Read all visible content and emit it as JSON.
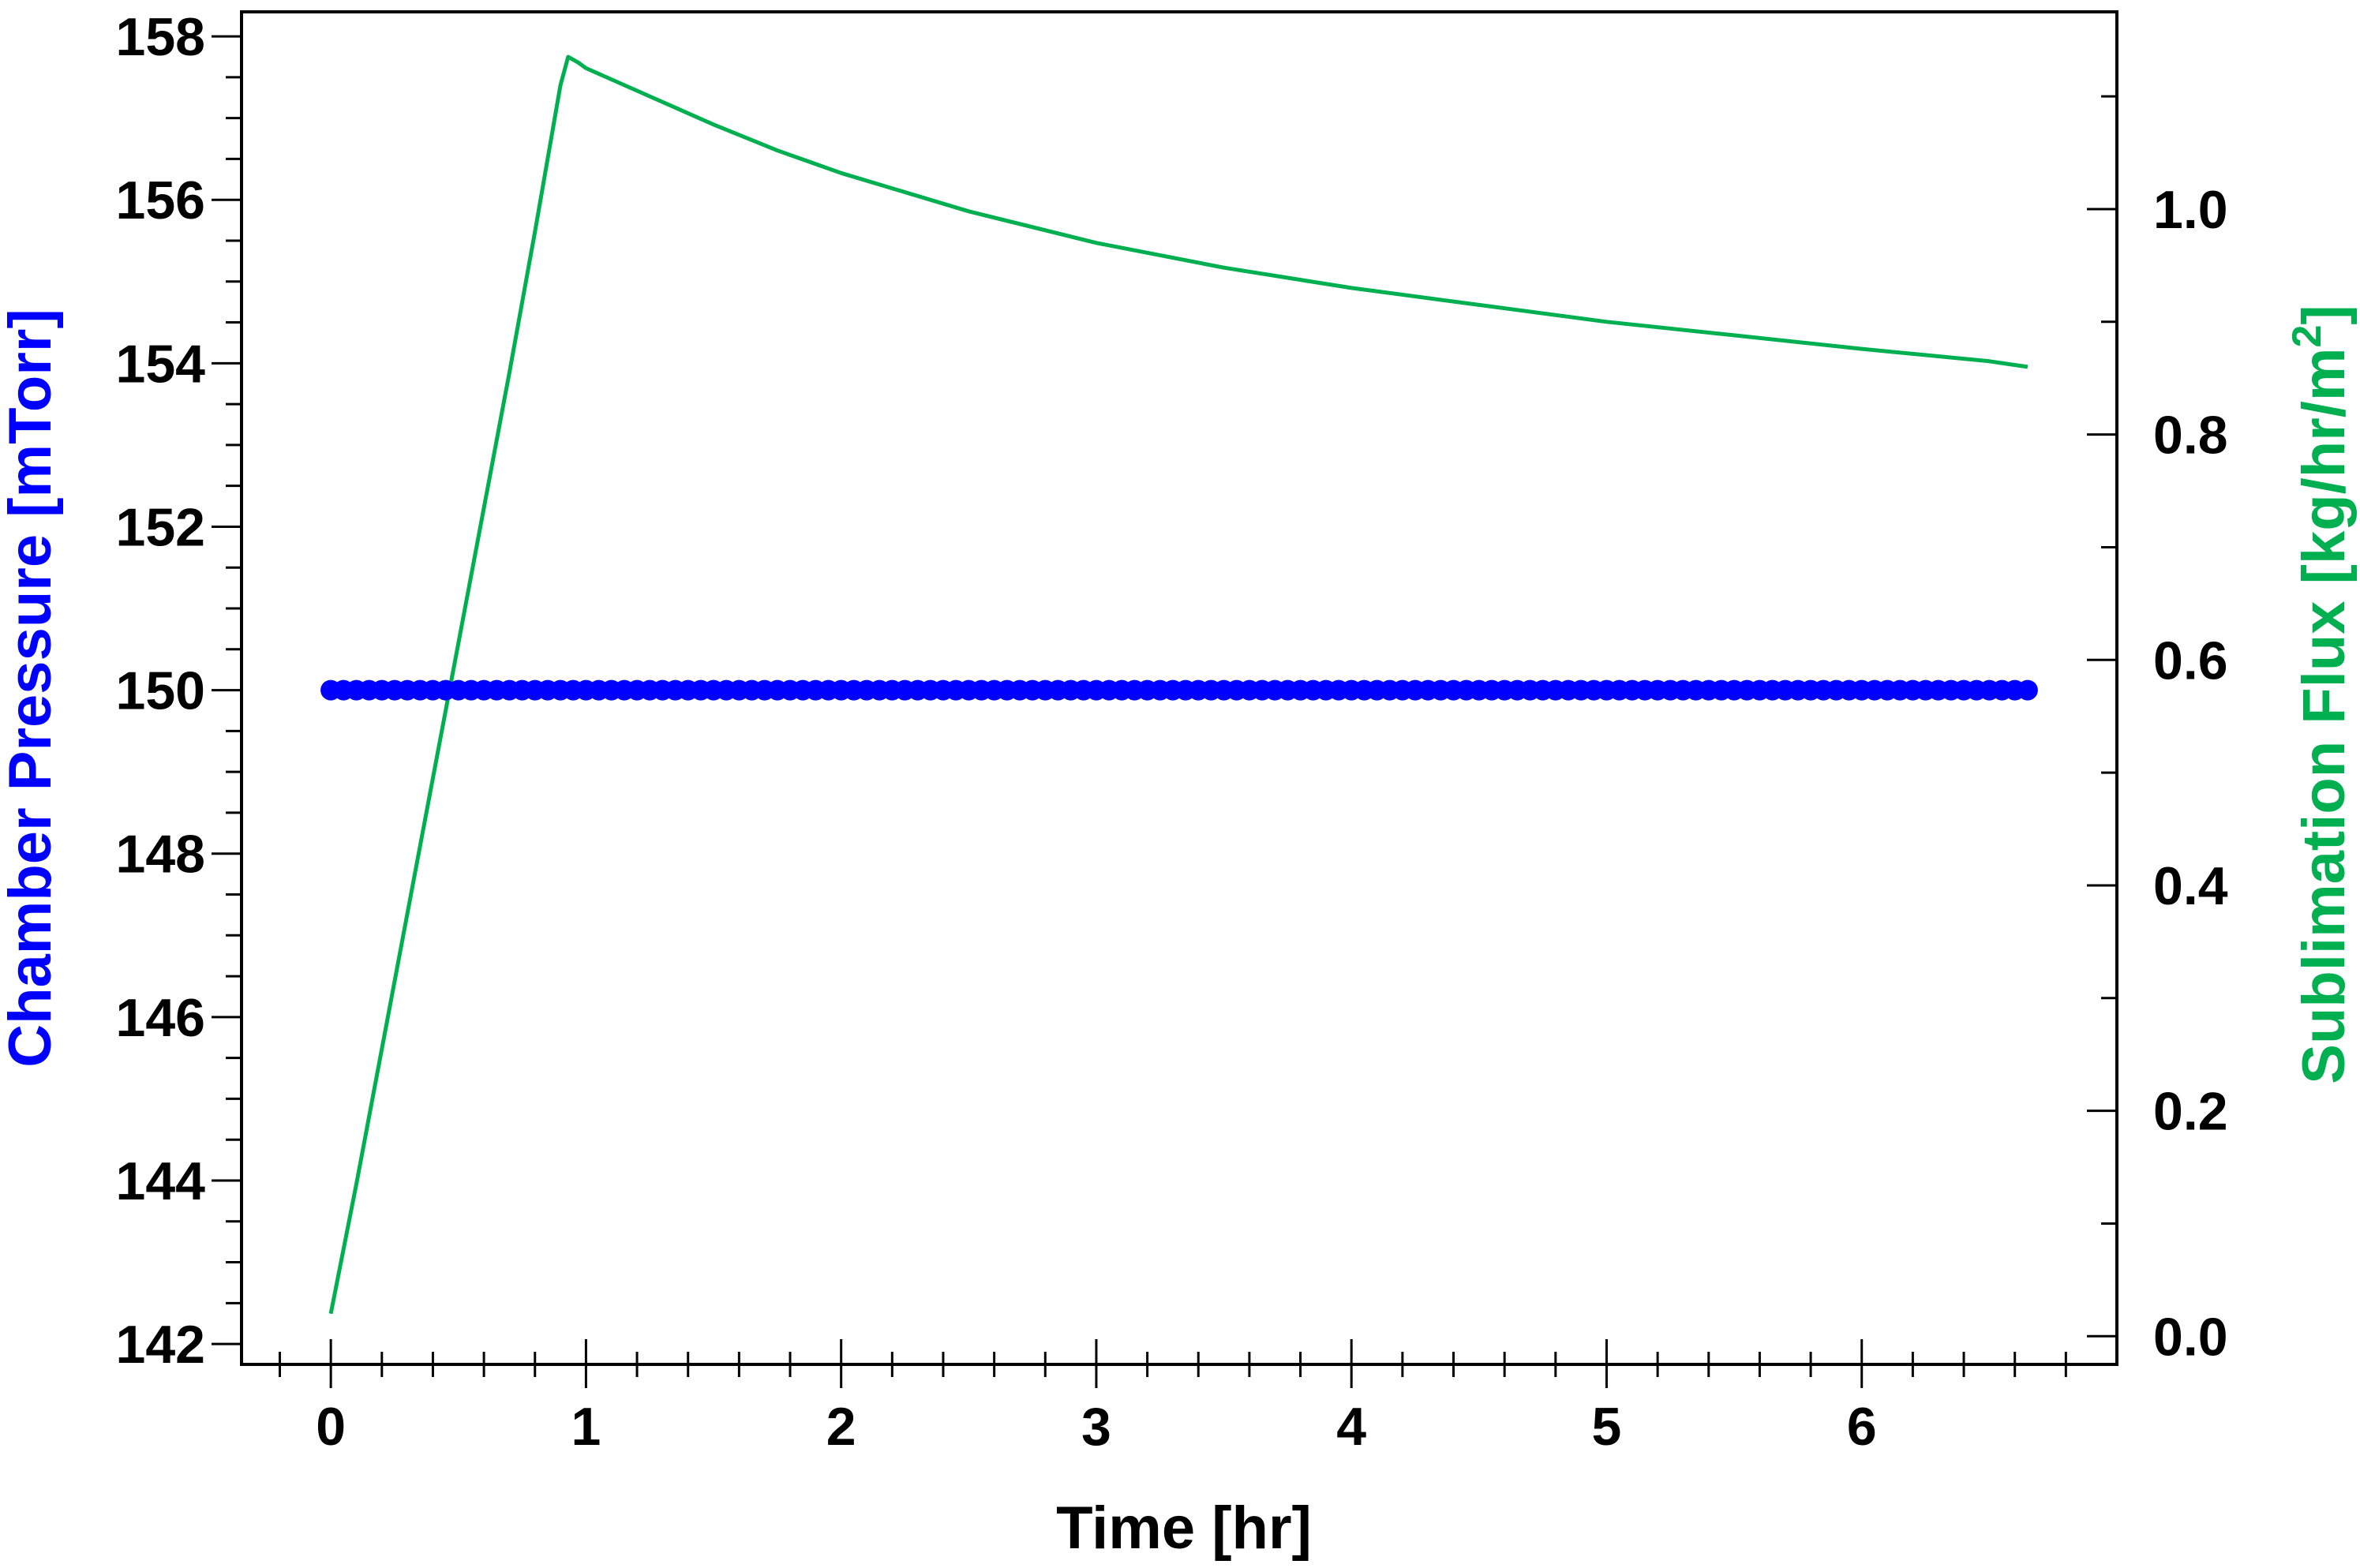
{
  "chart_data": {
    "type": "line",
    "title": "",
    "xlabel": "Time [hr]",
    "ylabel_left": "Chamber Pressure [mTorr]",
    "ylabel_right": {
      "prefix": "Sublimation Flux [kg/hr/m",
      "superscript": "2",
      "suffix": "]"
    },
    "colors": {
      "left_axis": "#0000ff",
      "right_axis": "#00b050"
    },
    "xlim": [
      -0.35,
      7.0
    ],
    "ylim_left": [
      141.75,
      158.3
    ],
    "ylim_right": [
      -0.025,
      1.175
    ],
    "x_ticks": [
      0,
      1,
      2,
      3,
      4,
      5,
      6
    ],
    "x_tick_labels": [
      "0",
      "1",
      "2",
      "3",
      "4",
      "5",
      "6"
    ],
    "y_left_ticks": [
      142,
      144,
      146,
      148,
      150,
      152,
      154,
      156,
      158
    ],
    "y_left_tick_labels": [
      "142",
      "144",
      "146",
      "148",
      "150",
      "152",
      "154",
      "156",
      "158"
    ],
    "y_right_ticks": [
      0.0,
      0.2,
      0.4,
      0.6,
      0.8,
      1.0
    ],
    "y_right_tick_labels": [
      "0.0",
      "0.2",
      "0.4",
      "0.6",
      "0.8",
      "1.0"
    ],
    "grid": false,
    "legend": "none",
    "series": [
      {
        "axis": "left",
        "style": "markers",
        "x_start": 0,
        "x_end": 6.65,
        "x_step": 0.05,
        "value": 150
      },
      {
        "axis": "right",
        "style": "line",
        "x": [
          0,
          0.1,
          0.2,
          0.3,
          0.4,
          0.5,
          0.6,
          0.7,
          0.8,
          0.9,
          0.93,
          0.97,
          1.0,
          1.25,
          1.5,
          1.75,
          2.0,
          2.5,
          3.0,
          3.5,
          4.0,
          4.5,
          5.0,
          5.5,
          6.0,
          6.5,
          6.65
        ],
        "y": [
          0.02,
          0.135,
          0.255,
          0.375,
          0.495,
          0.615,
          0.735,
          0.855,
          0.98,
          1.11,
          1.135,
          1.13,
          1.125,
          1.1,
          1.075,
          1.052,
          1.032,
          0.998,
          0.97,
          0.948,
          0.93,
          0.915,
          0.9,
          0.888,
          0.876,
          0.865,
          0.86
        ]
      }
    ]
  }
}
